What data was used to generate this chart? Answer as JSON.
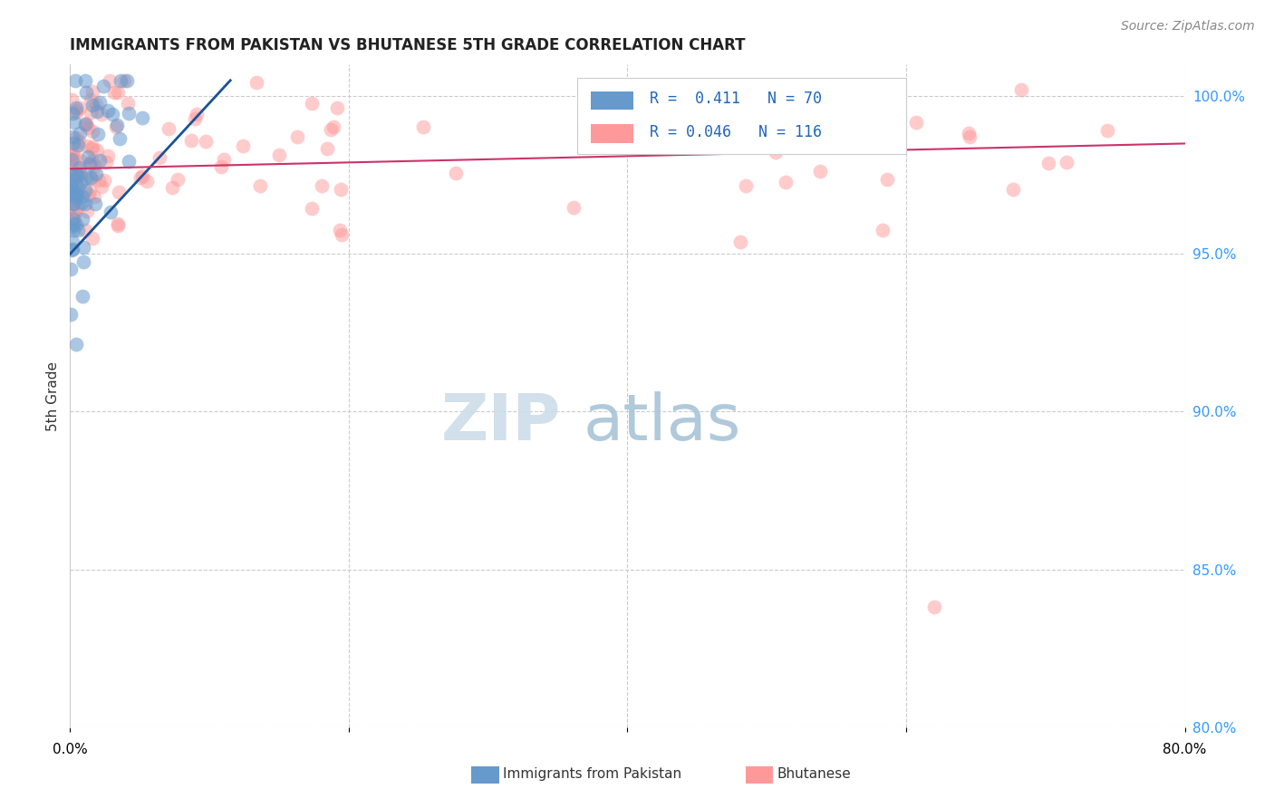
{
  "title": "IMMIGRANTS FROM PAKISTAN VS BHUTANESE 5TH GRADE CORRELATION CHART",
  "source": "Source: ZipAtlas.com",
  "ylabel": "5th Grade",
  "right_yticks": [
    "80.0%",
    "85.0%",
    "90.0%",
    "95.0%",
    "100.0%"
  ],
  "right_ytick_vals": [
    0.8,
    0.85,
    0.9,
    0.95,
    1.0
  ],
  "legend_label1": "Immigrants from Pakistan",
  "legend_label2": "Bhutanese",
  "legend_r1": "R =  0.411",
  "legend_n1": "N = 70",
  "legend_r2": "R = 0.046",
  "legend_n2": "N = 116",
  "color_pakistan": "#6699cc",
  "color_bhutanese": "#ff9999",
  "color_line_pakistan": "#1a5299",
  "color_line_bhutanese": "#cc3366"
}
